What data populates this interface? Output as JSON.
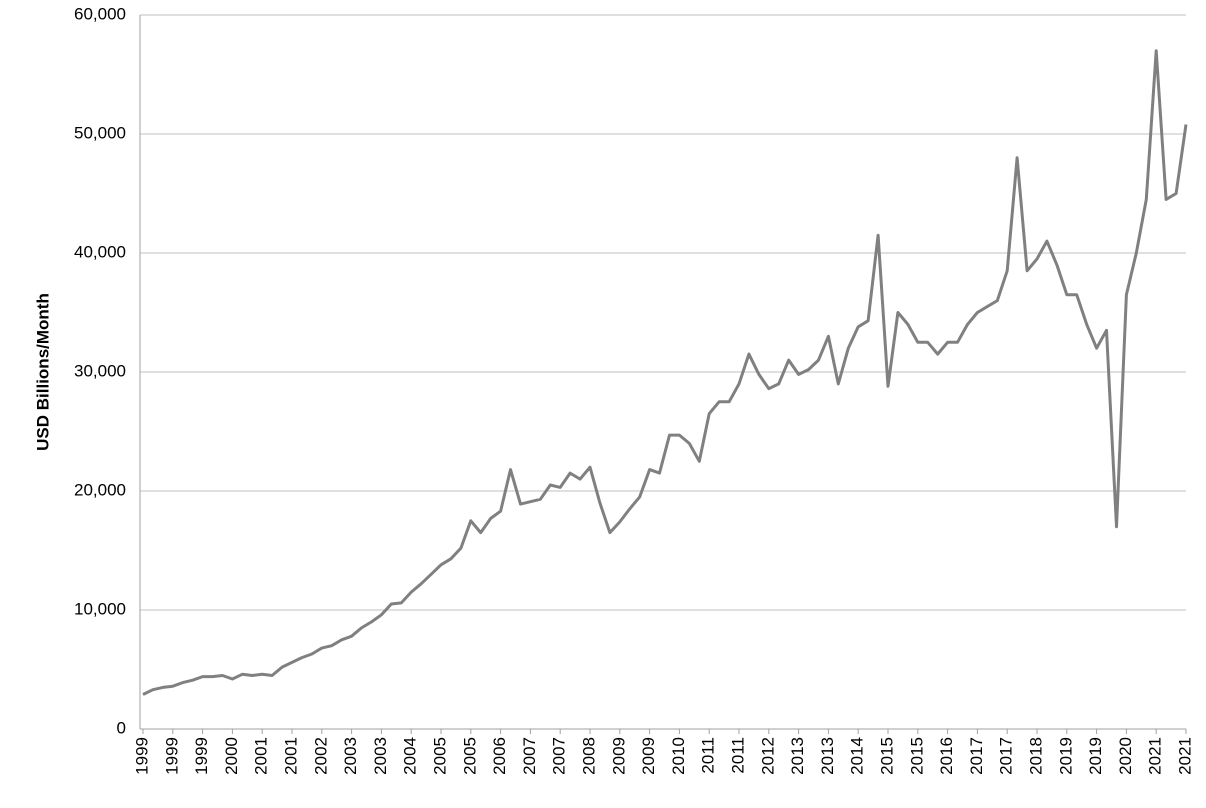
{
  "chart_data": {
    "type": "line",
    "y_label": "USD Billions/Month",
    "categories": [
      "1999",
      null,
      null,
      "1999",
      null,
      null,
      "1999",
      null,
      null,
      "2000",
      null,
      null,
      "2001",
      null,
      null,
      "2001",
      null,
      null,
      "2002",
      null,
      null,
      "2003",
      null,
      null,
      "2003",
      null,
      null,
      "2004",
      null,
      null,
      "2005",
      null,
      null,
      "2005",
      null,
      null,
      "2006",
      null,
      null,
      "2007",
      null,
      null,
      "2007",
      null,
      null,
      "2008",
      null,
      null,
      "2009",
      null,
      null,
      "2009",
      null,
      null,
      "2010",
      null,
      null,
      "2011",
      null,
      null,
      "2011",
      null,
      null,
      "2012",
      null,
      null,
      "2013",
      null,
      null,
      "2013",
      null,
      null,
      "2014",
      null,
      null,
      "2015",
      null,
      null,
      "2015",
      null,
      null,
      "2016",
      null,
      null,
      "2017",
      null,
      null,
      "2017",
      null,
      null,
      "2018",
      null,
      null,
      "2019",
      null,
      null,
      "2019",
      null,
      null,
      "2020",
      null,
      null,
      "2021",
      null,
      null,
      "2021"
    ],
    "series": [
      {
        "name": "USD Billions/Month",
        "color": "#808080",
        "values": [
          2900,
          3300,
          3500,
          3600,
          3900,
          4100,
          4400,
          4400,
          4500,
          4200,
          4600,
          4500,
          4600,
          4500,
          5200,
          5600,
          6000,
          6300,
          6800,
          7000,
          7500,
          7800,
          8500,
          9000,
          9600,
          10500,
          10600,
          11500,
          12200,
          13000,
          13800,
          14300,
          15200,
          17500,
          16500,
          17700,
          18300,
          21800,
          18900,
          19100,
          19300,
          20500,
          20300,
          21500,
          21000,
          22000,
          19000,
          16500,
          17400,
          18500,
          19500,
          21800,
          21500,
          24700,
          24700,
          24000,
          22500,
          26500,
          27500,
          27500,
          29000,
          31500,
          29800,
          28600,
          29000,
          31000,
          29800,
          30200,
          31000,
          33000,
          29000,
          32000,
          33800,
          34300,
          41500,
          28800,
          35000,
          34000,
          32500,
          32500,
          31500,
          32500,
          32500,
          34000,
          35000,
          35500,
          36000,
          38500,
          48000,
          38500,
          39500,
          41000,
          39000,
          36500,
          36500,
          34000,
          32000,
          33500,
          17000,
          36500,
          40000,
          44500,
          57000,
          44500,
          45000,
          50800
        ]
      }
    ],
    "ylim": [
      0,
      60000
    ],
    "yticks": [
      0,
      {
        "value": 10000,
        "label": "10,000"
      },
      {
        "value": 20000,
        "label": "20,000"
      },
      {
        "value": 30000,
        "label": "30,000"
      },
      {
        "value": 40000,
        "label": "40,000"
      },
      {
        "value": 50000,
        "label": "50,000"
      },
      {
        "value": 60000,
        "label": "60,000"
      }
    ],
    "grid": true
  }
}
